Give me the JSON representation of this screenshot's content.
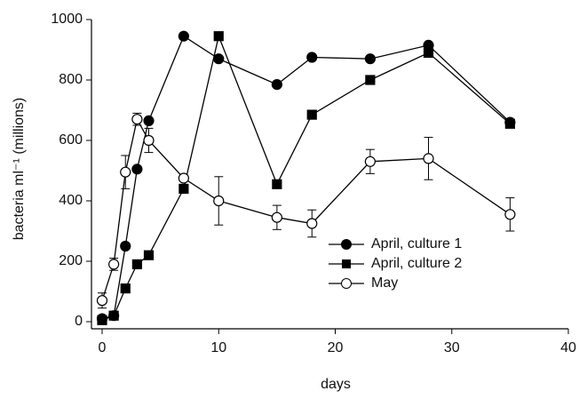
{
  "chart_data": {
    "type": "line",
    "xlabel": "days",
    "ylabel": "bacteria ml⁻¹ (millions)",
    "x": [
      0,
      1,
      2,
      3,
      4,
      7,
      10,
      15,
      18,
      23,
      28,
      35
    ],
    "xlim": [
      0,
      40
    ],
    "xticks": [
      0,
      10,
      20,
      30,
      40
    ],
    "ylim": [
      0,
      1000
    ],
    "yticks": [
      0,
      200,
      400,
      600,
      800,
      1000
    ],
    "legend": "center right",
    "series": [
      {
        "name": "April, culture 1",
        "color": "#000000",
        "marker": "circle-filled",
        "values": [
          10,
          20,
          250,
          505,
          665,
          945,
          870,
          785,
          875,
          870,
          915,
          660
        ]
      },
      {
        "name": "April, culture 2",
        "color": "#000000",
        "marker": "square-filled",
        "values": [
          5,
          20,
          110,
          190,
          220,
          440,
          945,
          455,
          685,
          800,
          890,
          655
        ]
      },
      {
        "name": "May",
        "color": "#000000",
        "marker": "circle-open",
        "values": [
          70,
          190,
          495,
          670,
          600,
          475,
          400,
          345,
          325,
          530,
          540,
          355
        ],
        "errors": [
          25,
          20,
          55,
          20,
          40,
          0,
          80,
          40,
          45,
          40,
          70,
          55
        ]
      }
    ]
  }
}
